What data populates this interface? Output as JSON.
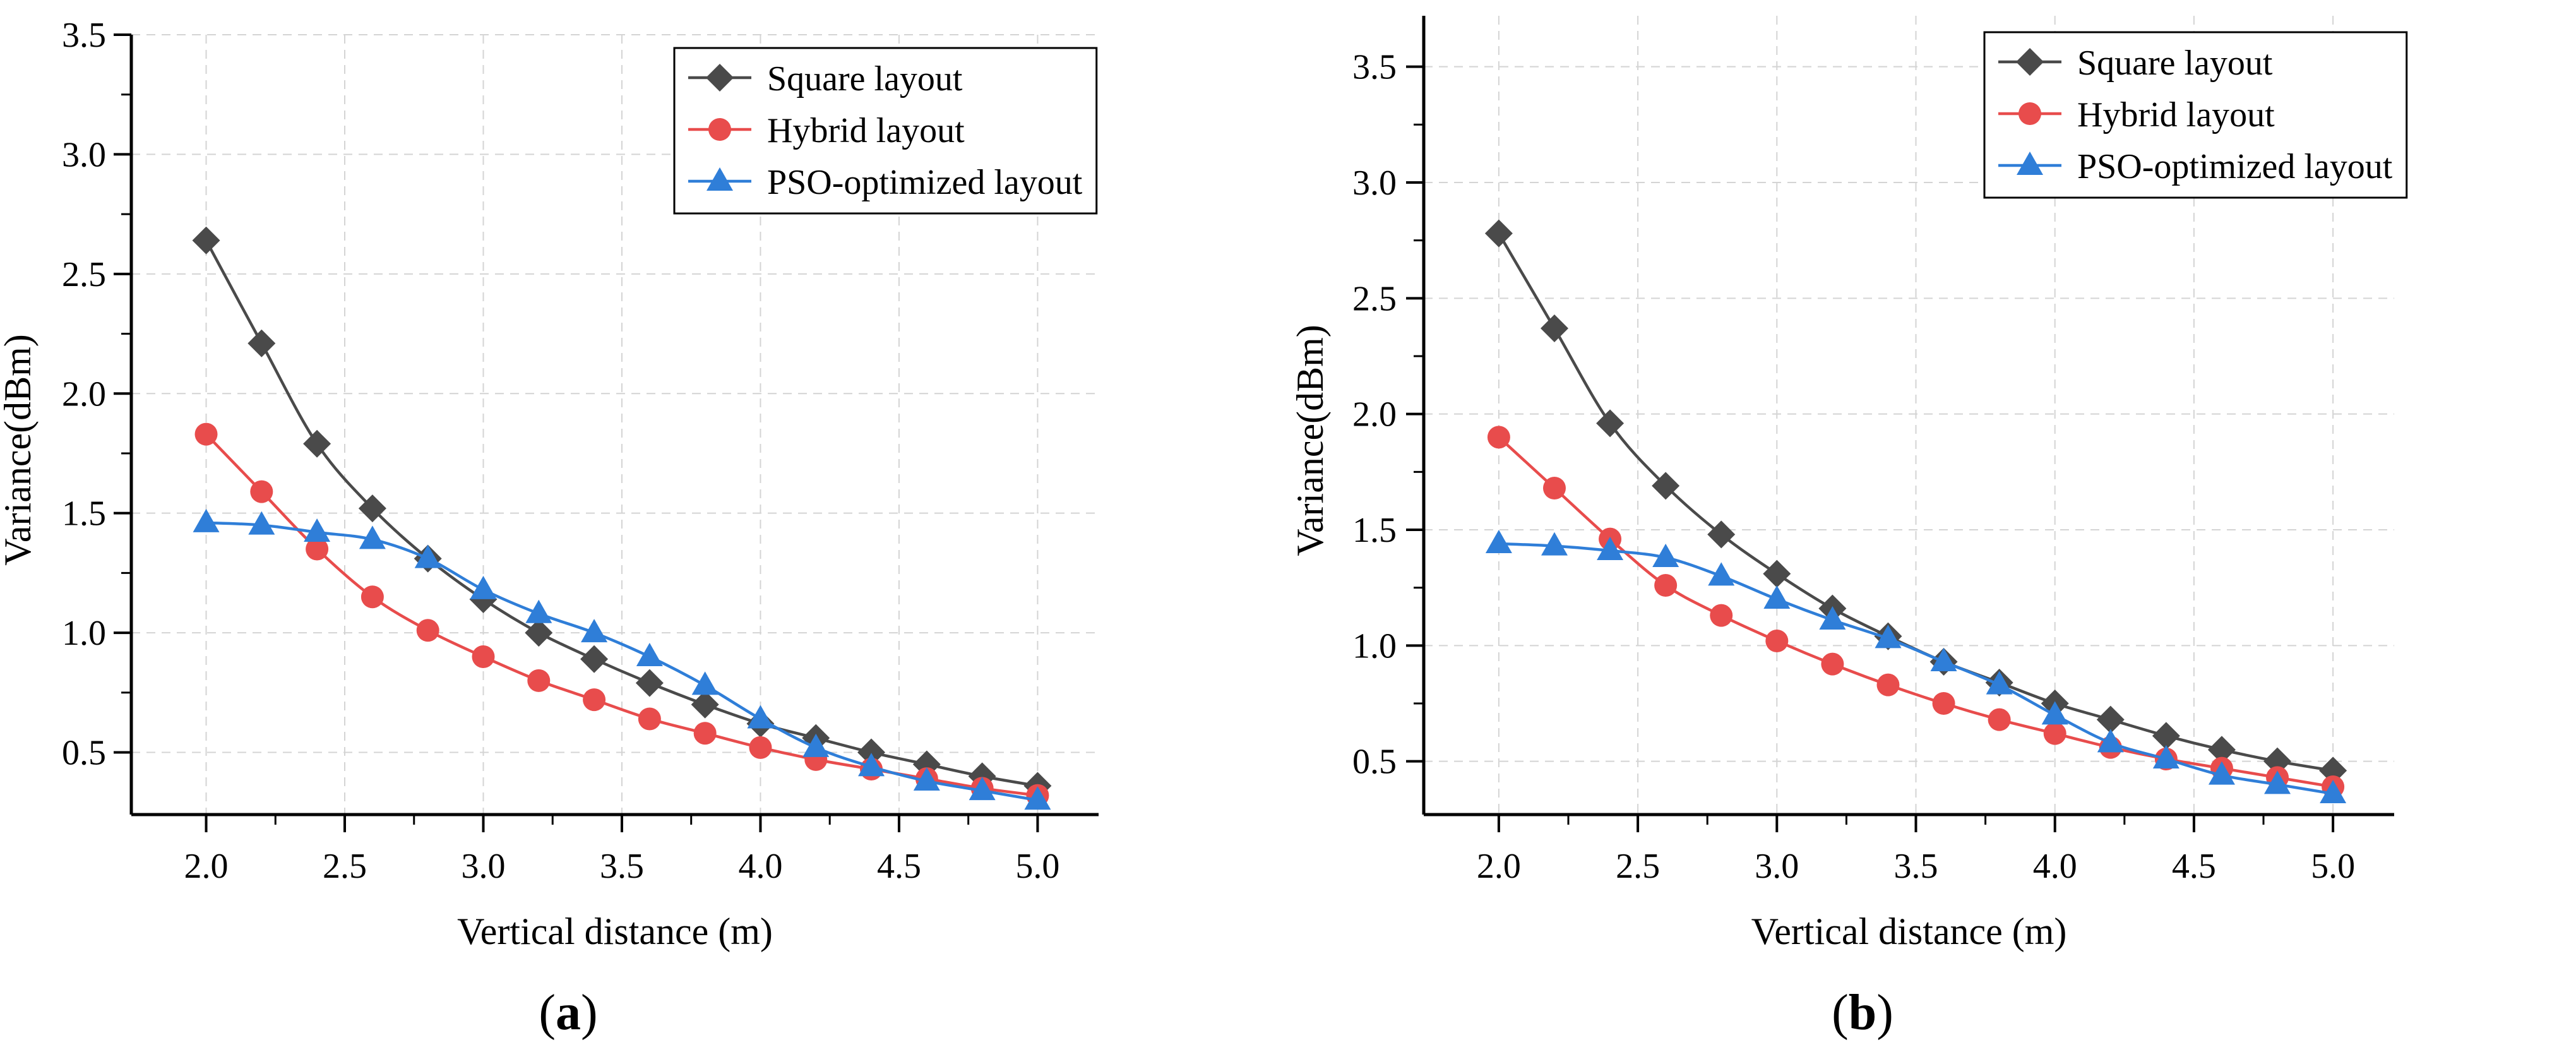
{
  "figures": [
    {
      "label_prefix": "(",
      "label_letter": "a",
      "label_suffix": ")"
    },
    {
      "label_prefix": "(",
      "label_letter": "b",
      "label_suffix": ")"
    }
  ],
  "chart_data": [
    {
      "type": "line",
      "title": "",
      "xlabel": "Vertical distance (m)",
      "ylabel": "Variance(dBm)",
      "xlim": [
        1.73,
        5.22
      ],
      "ylim": [
        0.24,
        3.5
      ],
      "xticks": [
        2.0,
        2.5,
        3.0,
        3.5,
        4.0,
        4.5,
        5.0
      ],
      "yticks": [
        0.5,
        1.0,
        1.5,
        2.0,
        2.5,
        3.0,
        3.5
      ],
      "grid": true,
      "legend_position": "top-right",
      "x": [
        2.0,
        2.2,
        2.4,
        2.6,
        2.8,
        3.0,
        3.2,
        3.4,
        3.6,
        3.8,
        4.0,
        4.2,
        4.4,
        4.6,
        4.8,
        5.0
      ],
      "series": [
        {
          "name": "Square layout",
          "color": "#4a4a4a",
          "marker": "diamond",
          "values": [
            2.64,
            2.21,
            1.79,
            1.52,
            1.31,
            1.14,
            1.0,
            0.89,
            0.79,
            0.7,
            0.62,
            0.56,
            0.5,
            0.45,
            0.4,
            0.36
          ]
        },
        {
          "name": "Hybrid layout",
          "color": "#e84c4c",
          "marker": "circle",
          "values": [
            1.83,
            1.59,
            1.35,
            1.15,
            1.01,
            0.9,
            0.8,
            0.72,
            0.64,
            0.58,
            0.52,
            0.47,
            0.43,
            0.39,
            0.35,
            0.32
          ]
        },
        {
          "name": "PSO-optimized layout",
          "color": "#2f7ed8",
          "marker": "triangle",
          "values": [
            1.46,
            1.45,
            1.42,
            1.39,
            1.31,
            1.18,
            1.08,
            1.0,
            0.9,
            0.78,
            0.64,
            0.52,
            0.44,
            0.38,
            0.34,
            0.3
          ]
        }
      ]
    },
    {
      "type": "line",
      "title": "",
      "xlabel": "Vertical distance (m)",
      "ylabel": "Variance(dBm)",
      "xlim": [
        1.73,
        5.22
      ],
      "ylim": [
        0.27,
        3.72
      ],
      "xticks": [
        2.0,
        2.5,
        3.0,
        3.5,
        4.0,
        4.5,
        5.0
      ],
      "yticks": [
        0.5,
        1.0,
        1.5,
        2.0,
        2.5,
        3.0,
        3.5
      ],
      "grid": true,
      "legend_position": "top-right",
      "x": [
        2.0,
        2.2,
        2.4,
        2.6,
        2.8,
        3.0,
        3.2,
        3.4,
        3.6,
        3.8,
        4.0,
        4.2,
        4.4,
        4.6,
        4.8,
        5.0
      ],
      "series": [
        {
          "name": "Square layout",
          "color": "#4a4a4a",
          "marker": "diamond",
          "values": [
            2.78,
            2.37,
            1.96,
            1.69,
            1.48,
            1.31,
            1.16,
            1.04,
            0.93,
            0.84,
            0.75,
            0.68,
            0.61,
            0.55,
            0.5,
            0.46
          ]
        },
        {
          "name": "Hybrid layout",
          "color": "#e84c4c",
          "marker": "circle",
          "values": [
            1.9,
            1.68,
            1.46,
            1.26,
            1.13,
            1.02,
            0.92,
            0.83,
            0.75,
            0.68,
            0.62,
            0.56,
            0.51,
            0.47,
            0.43,
            0.39
          ]
        },
        {
          "name": "PSO-optimized layout",
          "color": "#2f7ed8",
          "marker": "triangle",
          "values": [
            1.44,
            1.43,
            1.41,
            1.38,
            1.3,
            1.2,
            1.11,
            1.03,
            0.93,
            0.83,
            0.7,
            0.58,
            0.51,
            0.44,
            0.4,
            0.36
          ]
        }
      ]
    }
  ]
}
